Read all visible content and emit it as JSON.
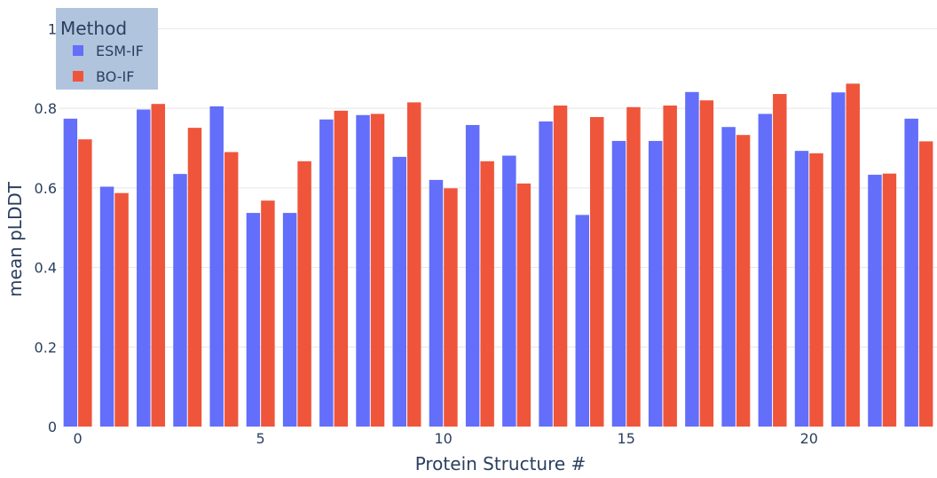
{
  "chart_data": {
    "type": "bar",
    "xlabel": "Protein Structure #",
    "ylabel": "mean pLDDT",
    "ylim": [
      0,
      1.05
    ],
    "xlim": [
      -0.5,
      23.5
    ],
    "yticks": [
      0,
      0.2,
      0.4,
      0.6,
      0.8,
      1
    ],
    "ytick_labels": [
      "0",
      "0.2",
      "0.4",
      "0.6",
      "0.8",
      "1"
    ],
    "xticks": [
      0,
      5,
      10,
      15,
      20
    ],
    "xtick_labels": [
      "0",
      "5",
      "10",
      "15",
      "20"
    ],
    "categories": [
      0,
      1,
      2,
      3,
      4,
      5,
      6,
      7,
      8,
      9,
      10,
      11,
      12,
      13,
      14,
      15,
      16,
      17,
      18,
      19,
      20,
      21,
      22,
      23
    ],
    "grid": true,
    "legend": {
      "title": "Method",
      "position": "top-left"
    },
    "series": [
      {
        "name": "ESM-IF",
        "color": "#636efa",
        "values": [
          0.774,
          0.603,
          0.797,
          0.635,
          0.805,
          0.537,
          0.537,
          0.772,
          0.783,
          0.678,
          0.62,
          0.758,
          0.681,
          0.767,
          0.532,
          0.718,
          0.718,
          0.841,
          0.753,
          0.786,
          0.693,
          0.84,
          0.633,
          0.774
        ]
      },
      {
        "name": "BO-IF",
        "color": "#ef553b",
        "values": [
          0.722,
          0.587,
          0.811,
          0.751,
          0.69,
          0.568,
          0.667,
          0.794,
          0.786,
          0.815,
          0.599,
          0.667,
          0.611,
          0.807,
          0.778,
          0.803,
          0.807,
          0.82,
          0.733,
          0.836,
          0.687,
          0.862,
          0.636,
          0.717
        ]
      }
    ]
  },
  "colors": {
    "background": "#ffffff",
    "grid": "#e5e5e5",
    "text": "#2a3f5f",
    "legend_bg": "#b0c4de"
  }
}
